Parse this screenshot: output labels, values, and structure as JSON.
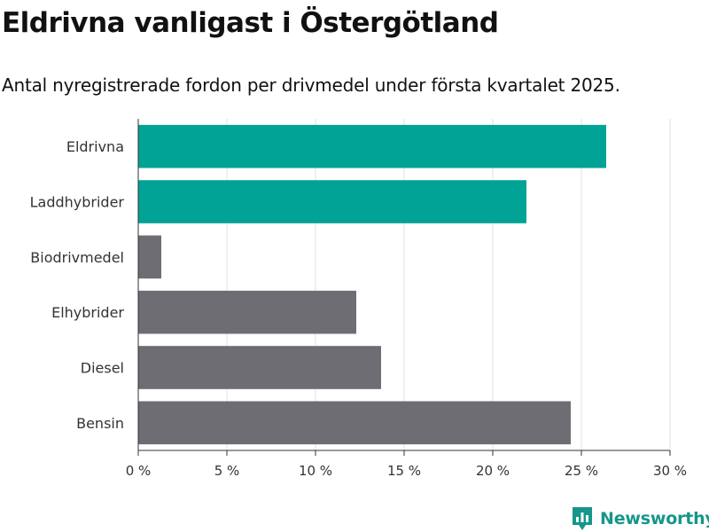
{
  "title": "Eldrivna vanligast i Östergötland",
  "subtitle": "Antal nyregistrerade fordon per drivmedel under första kvartalet 2025.",
  "brand": {
    "name": "Newsworthy",
    "color": "#16968a",
    "icon": "bar-chart-logo-icon"
  },
  "colors": {
    "highlight": "#00a396",
    "default": "#6e6d74",
    "grid": "#e0e0e0",
    "axis": "#333333"
  },
  "chart_data": {
    "type": "bar",
    "orientation": "horizontal",
    "categories": [
      "Eldrivna",
      "Laddhybrider",
      "Biodrivmedel",
      "Elhybrider",
      "Diesel",
      "Bensin"
    ],
    "values": [
      26.4,
      21.9,
      1.3,
      12.3,
      13.7,
      24.4
    ],
    "highlighted": [
      true,
      true,
      false,
      false,
      false,
      false
    ],
    "xlim": [
      0,
      30
    ],
    "xticks": [
      0,
      5,
      10,
      15,
      20,
      25,
      30
    ],
    "xtick_labels": [
      "0 %",
      "5 %",
      "10 %",
      "15 %",
      "20 %",
      "25 %",
      "30 %"
    ],
    "grid": true
  }
}
